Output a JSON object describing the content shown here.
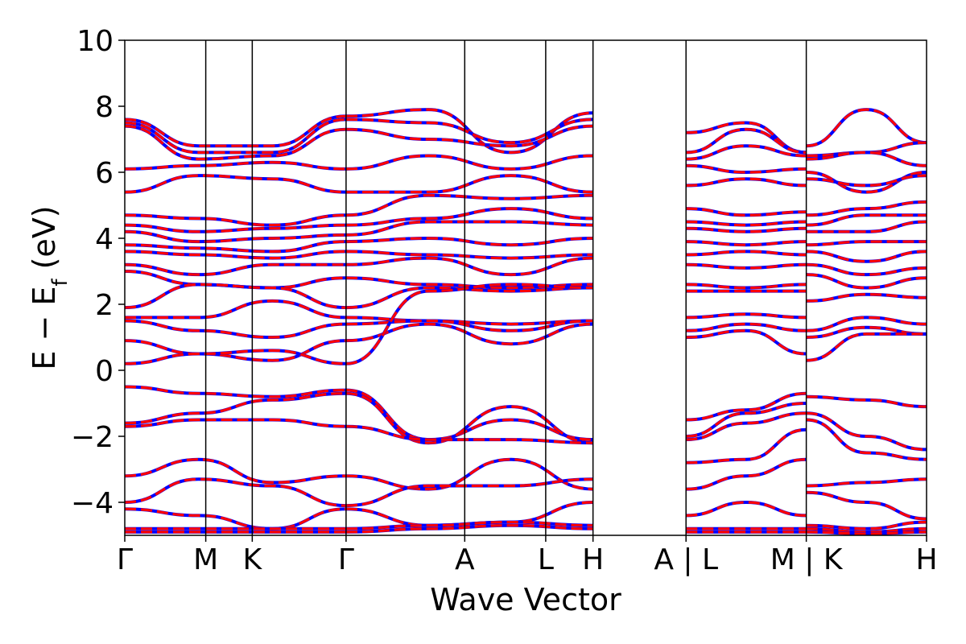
{
  "chart_data": {
    "type": "line",
    "title": "",
    "xlabel": "Wave Vector",
    "ylabel": {
      "prefix": "E − E",
      "subscript": "f",
      "suffix": " (eV)"
    },
    "ylim": [
      -5,
      10
    ],
    "yticks": [
      -4,
      -2,
      0,
      2,
      4,
      6,
      8,
      10
    ],
    "ytick_labels": [
      "−4",
      "−2",
      "0",
      "2",
      "4",
      "6",
      "8",
      "10"
    ],
    "kpath_ticks": [
      {
        "label": "Γ",
        "x": 0.0
      },
      {
        "label": "M",
        "x": 0.101
      },
      {
        "label": "K",
        "x": 0.159
      },
      {
        "label": "Γ",
        "x": 0.276
      },
      {
        "label": "A",
        "x": 0.424
      },
      {
        "label": "L",
        "x": 0.525
      },
      {
        "label": "H",
        "x": 0.584
      },
      {
        "label": "A | L",
        "x": 0.7
      },
      {
        "label": "M | K",
        "x": 0.85
      },
      {
        "label": "H",
        "x": 1.0
      }
    ],
    "series_colors": [
      "#0000ff",
      "#ff0000"
    ],
    "grid": false,
    "bands": [
      {
        "segments": [
          {
            "from": 0,
            "to": 3,
            "e": [
              7.6,
              6.8,
              6.8,
              7.7
            ]
          },
          {
            "from": 3,
            "to": 6,
            "e": [
              7.7,
              7.9,
              6.6,
              7.8
            ]
          },
          {
            "from": 7,
            "to": 8,
            "e": [
              7.2,
              7.5,
              6.6
            ]
          },
          {
            "from": 8,
            "to": 9,
            "e": [
              6.8,
              7.9,
              6.9
            ]
          }
        ]
      },
      {
        "segments": [
          {
            "from": 0,
            "to": 3,
            "e": [
              7.5,
              6.6,
              6.6,
              7.6
            ]
          },
          {
            "from": 3,
            "to": 6,
            "e": [
              7.6,
              7.5,
              6.9,
              7.6
            ]
          },
          {
            "from": 7,
            "to": 8,
            "e": [
              6.6,
              7.3,
              6.6
            ]
          },
          {
            "from": 8,
            "to": 9,
            "e": [
              6.5,
              6.6,
              6.9
            ]
          }
        ]
      },
      {
        "segments": [
          {
            "from": 0,
            "to": 3,
            "e": [
              7.4,
              6.4,
              6.5,
              7.3
            ]
          },
          {
            "from": 3,
            "to": 6,
            "e": [
              7.3,
              7.0,
              6.8,
              7.4
            ]
          },
          {
            "from": 7,
            "to": 8,
            "e": [
              6.4,
              6.8,
              6.5
            ]
          },
          {
            "from": 8,
            "to": 9,
            "e": [
              6.4,
              6.6,
              6.2
            ]
          }
        ]
      },
      {
        "segments": [
          {
            "from": 0,
            "to": 3,
            "e": [
              6.1,
              6.2,
              6.3,
              6.1
            ]
          },
          {
            "from": 3,
            "to": 6,
            "e": [
              6.1,
              6.5,
              6.1,
              6.5
            ]
          },
          {
            "from": 7,
            "to": 8,
            "e": [
              6.2,
              6.0,
              6.1
            ]
          },
          {
            "from": 8,
            "to": 9,
            "e": [
              6.0,
              5.4,
              6.0
            ]
          }
        ]
      },
      {
        "segments": [
          {
            "from": 0,
            "to": 3,
            "e": [
              5.4,
              5.9,
              5.8,
              5.4
            ]
          },
          {
            "from": 3,
            "to": 6,
            "e": [
              5.4,
              5.4,
              5.9,
              5.4
            ]
          },
          {
            "from": 7,
            "to": 8,
            "e": [
              5.6,
              5.8,
              5.6
            ]
          },
          {
            "from": 8,
            "to": 9,
            "e": [
              5.8,
              5.6,
              5.9
            ]
          }
        ]
      },
      {
        "segments": [
          {
            "from": 0,
            "to": 3,
            "e": [
              4.7,
              4.6,
              4.4,
              4.7
            ]
          },
          {
            "from": 3,
            "to": 6,
            "e": [
              4.7,
              5.3,
              5.2,
              5.3
            ]
          },
          {
            "from": 7,
            "to": 8,
            "e": [
              4.9,
              4.7,
              4.8
            ]
          },
          {
            "from": 8,
            "to": 9,
            "e": [
              4.7,
              4.9,
              5.1
            ]
          }
        ]
      },
      {
        "segments": [
          {
            "from": 0,
            "to": 3,
            "e": [
              4.4,
              4.2,
              4.3,
              4.4
            ]
          },
          {
            "from": 3,
            "to": 6,
            "e": [
              4.4,
              4.6,
              4.9,
              4.6
            ]
          },
          {
            "from": 7,
            "to": 8,
            "e": [
              4.5,
              4.4,
              4.5
            ]
          },
          {
            "from": 8,
            "to": 9,
            "e": [
              4.4,
              4.7,
              4.7
            ]
          }
        ]
      },
      {
        "segments": [
          {
            "from": 0,
            "to": 3,
            "e": [
              4.2,
              3.9,
              4.0,
              4.1
            ]
          },
          {
            "from": 3,
            "to": 6,
            "e": [
              4.1,
              4.5,
              4.5,
              4.4
            ]
          },
          {
            "from": 7,
            "to": 8,
            "e": [
              4.3,
              4.2,
              4.3
            ]
          },
          {
            "from": 8,
            "to": 9,
            "e": [
              4.2,
              4.2,
              4.5
            ]
          }
        ]
      },
      {
        "segments": [
          {
            "from": 0,
            "to": 3,
            "e": [
              3.8,
              3.7,
              3.6,
              3.9
            ]
          },
          {
            "from": 3,
            "to": 6,
            "e": [
              3.9,
              4.0,
              3.8,
              4.0
            ]
          },
          {
            "from": 7,
            "to": 8,
            "e": [
              3.9,
              3.8,
              3.9
            ]
          },
          {
            "from": 8,
            "to": 9,
            "e": [
              3.8,
              3.9,
              3.9
            ]
          }
        ]
      },
      {
        "segments": [
          {
            "from": 0,
            "to": 3,
            "e": [
              3.6,
              3.5,
              3.4,
              3.6
            ]
          },
          {
            "from": 3,
            "to": 6,
            "e": [
              3.6,
              3.5,
              3.4,
              3.5
            ]
          },
          {
            "from": 7,
            "to": 8,
            "e": [
              3.5,
              3.6,
              3.5
            ]
          },
          {
            "from": 8,
            "to": 9,
            "e": [
              3.6,
              3.3,
              3.6
            ]
          }
        ]
      },
      {
        "segments": [
          {
            "from": 0,
            "to": 3,
            "e": [
              3.2,
              2.9,
              3.2,
              3.2
            ]
          },
          {
            "from": 3,
            "to": 6,
            "e": [
              3.2,
              3.4,
              2.9,
              3.4
            ]
          },
          {
            "from": 7,
            "to": 8,
            "e": [
              3.2,
              3.1,
              3.2
            ]
          },
          {
            "from": 8,
            "to": 9,
            "e": [
              3.2,
              2.9,
              3.1
            ]
          }
        ]
      },
      {
        "segments": [
          {
            "from": 0,
            "to": 3,
            "e": [
              3.0,
              2.6,
              2.5,
              2.8
            ]
          },
          {
            "from": 3,
            "to": 6,
            "e": [
              2.8,
              2.6,
              2.5,
              2.6
            ]
          },
          {
            "from": 7,
            "to": 8,
            "e": [
              2.6,
              2.5,
              2.6
            ]
          },
          {
            "from": 8,
            "to": 9,
            "e": [
              2.9,
              2.5,
              2.8
            ]
          }
        ]
      },
      {
        "segments": [
          {
            "from": 0,
            "to": 3,
            "e": [
              1.9,
              2.6,
              2.5,
              1.9
            ]
          },
          {
            "from": 3,
            "to": 6,
            "e": [
              1.9,
              2.5,
              2.4,
              2.5
            ]
          },
          {
            "from": 7,
            "to": 8,
            "e": [
              2.4,
              2.4,
              2.4
            ]
          },
          {
            "from": 8,
            "to": 9,
            "e": [
              2.1,
              2.3,
              2.2
            ]
          }
        ]
      },
      {
        "segments": [
          {
            "from": 0,
            "to": 3,
            "e": [
              1.6,
              1.6,
              2.1,
              1.6
            ]
          },
          {
            "from": 3,
            "to": 6,
            "e": [
              1.6,
              1.5,
              1.4,
              1.5
            ]
          },
          {
            "from": 7,
            "to": 8,
            "e": [
              1.6,
              1.7,
              1.6
            ]
          },
          {
            "from": 8,
            "to": 9,
            "e": [
              1.2,
              1.6,
              1.4
            ]
          }
        ]
      },
      {
        "segments": [
          {
            "from": 0,
            "to": 3,
            "e": [
              1.5,
              1.2,
              1.0,
              1.4
            ]
          },
          {
            "from": 3,
            "to": 6,
            "e": [
              1.4,
              1.5,
              1.2,
              1.5
            ]
          },
          {
            "from": 7,
            "to": 8,
            "e": [
              1.2,
              1.4,
              1.2
            ]
          },
          {
            "from": 8,
            "to": 9,
            "e": [
              1.0,
              1.3,
              1.1
            ]
          }
        ]
      },
      {
        "segments": [
          {
            "from": 0,
            "to": 3,
            "e": [
              0.9,
              0.5,
              0.3,
              0.9
            ]
          },
          {
            "from": 3,
            "to": 6,
            "e": [
              0.9,
              1.4,
              0.8,
              1.4
            ]
          },
          {
            "from": 7,
            "to": 8,
            "e": [
              1.0,
              1.2,
              0.5
            ]
          },
          {
            "from": 8,
            "to": 9,
            "e": [
              0.3,
              1.1,
              1.1
            ]
          }
        ]
      },
      {
        "segments": [
          {
            "from": 0,
            "to": 3,
            "e": [
              0.2,
              0.5,
              0.6,
              0.2
            ]
          },
          {
            "from": 3,
            "to": 6,
            "e": [
              0.2,
              2.4,
              2.6,
              2.5
            ]
          }
        ]
      },
      {
        "segments": [
          {
            "from": 0,
            "to": 3,
            "e": [
              -0.5,
              -0.7,
              -0.8,
              -0.6
            ]
          },
          {
            "from": 3,
            "to": 6,
            "e": [
              -0.6,
              -2.1,
              -1.5,
              -2.1
            ]
          },
          {
            "from": 7,
            "to": 8,
            "e": [
              -1.5,
              -1.2,
              -0.7
            ]
          },
          {
            "from": 8,
            "to": 9,
            "e": [
              -0.8,
              -0.9,
              -1.1
            ]
          }
        ]
      },
      {
        "segments": [
          {
            "from": 0,
            "to": 3,
            "e": [
              -1.6,
              -1.3,
              -0.9,
              -0.7
            ]
          },
          {
            "from": 3,
            "to": 6,
            "e": [
              -0.7,
              -2.2,
              -1.1,
              -2.2
            ]
          },
          {
            "from": 7,
            "to": 8,
            "e": [
              -2.0,
              -1.3,
              -1.0
            ]
          },
          {
            "from": 8,
            "to": 9,
            "e": [
              -1.3,
              -2.0,
              -2.4
            ]
          }
        ]
      },
      {
        "segments": [
          {
            "from": 0,
            "to": 3,
            "e": [
              -1.7,
              -1.5,
              -1.5,
              -1.7
            ]
          },
          {
            "from": 3,
            "to": 6,
            "e": [
              -1.7,
              -2.1,
              -2.1,
              -2.2
            ]
          },
          {
            "from": 7,
            "to": 8,
            "e": [
              -2.1,
              -1.6,
              -1.3
            ]
          },
          {
            "from": 8,
            "to": 9,
            "e": [
              -1.5,
              -2.5,
              -2.7
            ]
          }
        ]
      },
      {
        "segments": [
          {
            "from": 0,
            "to": 3,
            "e": [
              -3.2,
              -2.7,
              -3.4,
              -3.2
            ]
          },
          {
            "from": 3,
            "to": 6,
            "e": [
              -3.2,
              -3.6,
              -2.7,
              -3.6
            ]
          },
          {
            "from": 7,
            "to": 8,
            "e": [
              -2.8,
              -2.7,
              -1.8
            ]
          },
          {
            "from": 8,
            "to": 9,
            "e": [
              -3.5,
              -3.4,
              -3.3
            ]
          }
        ]
      },
      {
        "segments": [
          {
            "from": 0,
            "to": 3,
            "e": [
              -4.0,
              -3.3,
              -3.5,
              -4.1
            ]
          },
          {
            "from": 3,
            "to": 6,
            "e": [
              -4.1,
              -3.5,
              -3.5,
              -3.3
            ]
          },
          {
            "from": 7,
            "to": 8,
            "e": [
              -3.6,
              -3.2,
              -2.7
            ]
          },
          {
            "from": 8,
            "to": 9,
            "e": [
              -3.7,
              -4.0,
              -4.5
            ]
          }
        ]
      },
      {
        "segments": [
          {
            "from": 0,
            "to": 3,
            "e": [
              -4.2,
              -4.4,
              -4.8,
              -4.2
            ]
          },
          {
            "from": 3,
            "to": 6,
            "e": [
              -4.2,
              -4.7,
              -4.6,
              -4.0
            ]
          },
          {
            "from": 7,
            "to": 8,
            "e": [
              -4.4,
              -4.0,
              -4.4
            ]
          },
          {
            "from": 8,
            "to": 9,
            "e": [
              -4.7,
              -4.8,
              -4.6
            ]
          }
        ]
      },
      {
        "segments": [
          {
            "from": 0,
            "to": 3,
            "e": [
              -4.8,
              -4.8,
              -4.8,
              -4.8
            ]
          },
          {
            "from": 3,
            "to": 6,
            "e": [
              -4.8,
              -4.7,
              -4.6,
              -4.7
            ]
          },
          {
            "from": 7,
            "to": 8,
            "e": [
              -4.8,
              -4.8,
              -4.8
            ]
          },
          {
            "from": 8,
            "to": 9,
            "e": [
              -4.8,
              -4.9,
              -4.8
            ]
          }
        ]
      },
      {
        "segments": [
          {
            "from": 0,
            "to": 3,
            "e": [
              -4.9,
              -4.9,
              -4.9,
              -4.9
            ]
          },
          {
            "from": 3,
            "to": 6,
            "e": [
              -4.9,
              -4.8,
              -4.7,
              -4.8
            ]
          },
          {
            "from": 7,
            "to": 8,
            "e": [
              -4.9,
              -4.9,
              -4.9
            ]
          },
          {
            "from": 8,
            "to": 9,
            "e": [
              -4.9,
              -4.95,
              -4.9
            ]
          }
        ]
      }
    ]
  }
}
